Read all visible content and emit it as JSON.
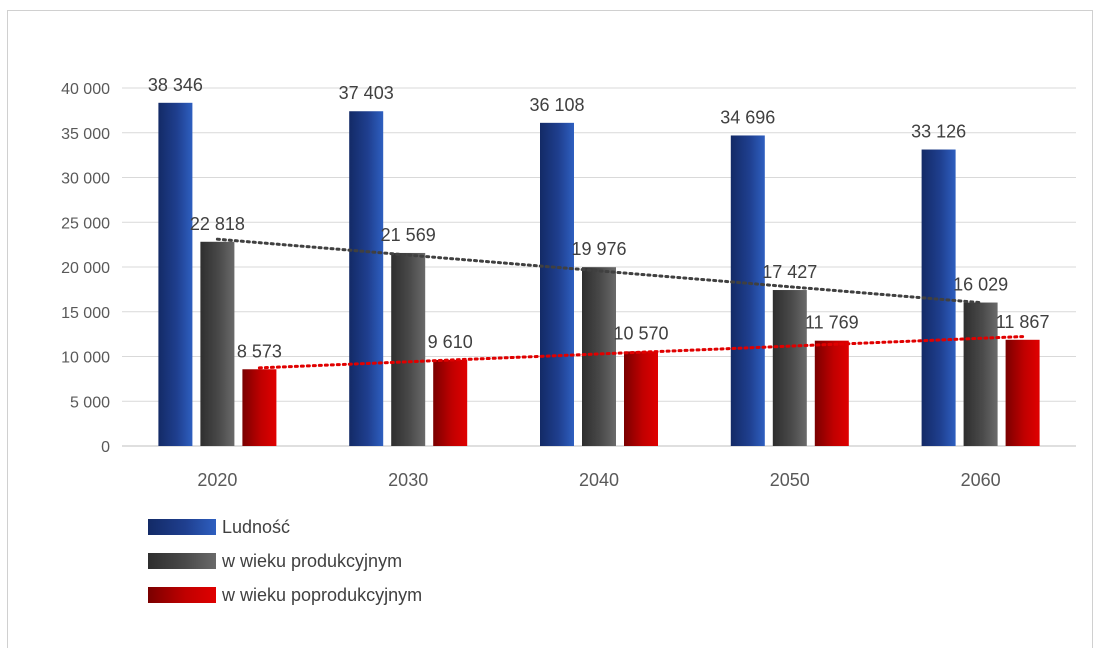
{
  "chart_data": {
    "type": "bar",
    "categories": [
      "2020",
      "2030",
      "2040",
      "2050",
      "2060"
    ],
    "series": [
      {
        "name": "Ludność",
        "values": [
          38346,
          37403,
          36108,
          34696,
          33126
        ],
        "labels": [
          "38 346",
          "37 403",
          "36 108",
          "34 696",
          "33 126"
        ],
        "color": "#1f3f8f",
        "color_light": "#2e5fc0",
        "color_dark": "#132a66"
      },
      {
        "name": "w wieku produkcyjnym",
        "values": [
          22818,
          21569,
          19976,
          17427,
          16029
        ],
        "labels": [
          "22 818",
          "21 569",
          "19 976",
          "17 427",
          "16 029"
        ],
        "color": "#4a4a4a",
        "color_light": "#6a6a6a",
        "color_dark": "#2e2e2e",
        "trendline_color": "#404040"
      },
      {
        "name": "w wieku poprodukcyjnym",
        "values": [
          8573,
          9610,
          10570,
          11769,
          11867
        ],
        "labels": [
          "8 573",
          "9 610",
          "10 570",
          "11 769",
          "11 867"
        ],
        "color": "#c00000",
        "color_light": "#e00000",
        "color_dark": "#7a0000",
        "trendline_color": "#e00000"
      }
    ],
    "ylim": [
      0,
      40000
    ],
    "yticks": [
      0,
      5000,
      10000,
      15000,
      20000,
      25000,
      30000,
      35000,
      40000
    ],
    "ytick_labels": [
      "0",
      "5 000",
      "10 000",
      "15 000",
      "20 000",
      "25 000",
      "30 000",
      "35 000",
      "40 000"
    ],
    "grid": true,
    "trendlines": [
      "w wieku produkcyjnym",
      "w wieku poprodukcyjnym"
    ],
    "legend_position": "bottom-left"
  }
}
